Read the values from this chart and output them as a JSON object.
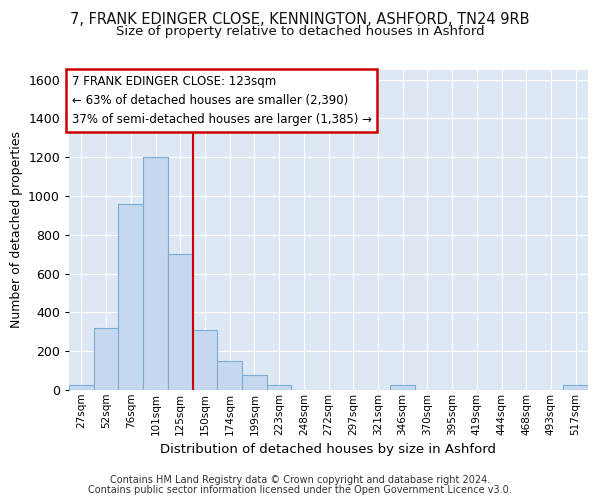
{
  "title1": "7, FRANK EDINGER CLOSE, KENNINGTON, ASHFORD, TN24 9RB",
  "title2": "Size of property relative to detached houses in Ashford",
  "xlabel": "Distribution of detached houses by size in Ashford",
  "ylabel": "Number of detached properties",
  "bin_labels": [
    "27sqm",
    "52sqm",
    "76sqm",
    "101sqm",
    "125sqm",
    "150sqm",
    "174sqm",
    "199sqm",
    "223sqm",
    "248sqm",
    "272sqm",
    "297sqm",
    "321sqm",
    "346sqm",
    "370sqm",
    "395sqm",
    "419sqm",
    "444sqm",
    "468sqm",
    "493sqm",
    "517sqm"
  ],
  "bar_values": [
    25,
    320,
    960,
    1200,
    700,
    310,
    150,
    75,
    25,
    0,
    0,
    0,
    0,
    25,
    0,
    0,
    0,
    0,
    0,
    0,
    25
  ],
  "bar_color": "#c5d8ef",
  "bar_edge_color": "#7aacd4",
  "grid_color": "#ffffff",
  "background_color": "#dde8f4",
  "vline_x": 4.5,
  "vline_color": "#cc0000",
  "annotation_line1": "7 FRANK EDINGER CLOSE: 123sqm",
  "annotation_line2": "← 63% of detached houses are smaller (2,390)",
  "annotation_line3": "37% of semi-detached houses are larger (1,385) →",
  "ylim": [
    0,
    1650
  ],
  "yticks": [
    0,
    200,
    400,
    600,
    800,
    1000,
    1200,
    1400,
    1600
  ],
  "footer1": "Contains HM Land Registry data © Crown copyright and database right 2024.",
  "footer2": "Contains public sector information licensed under the Open Government Licence v3.0."
}
